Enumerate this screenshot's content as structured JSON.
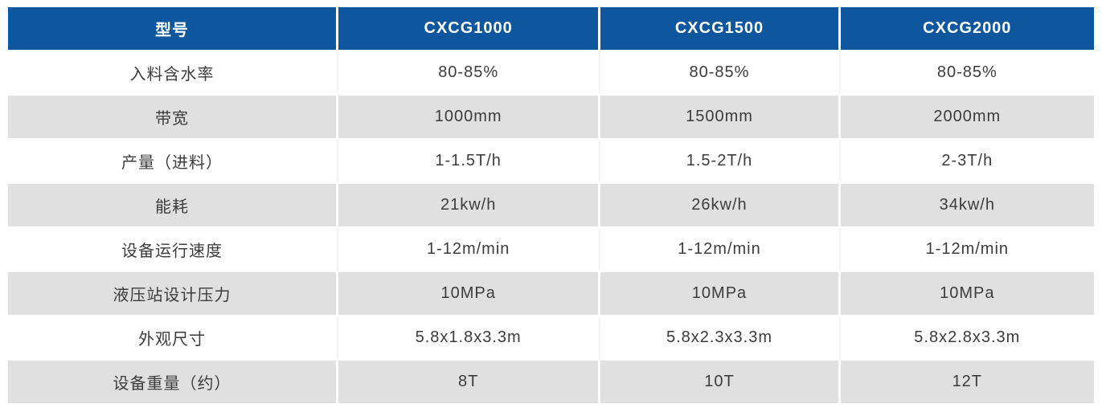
{
  "table": {
    "header": {
      "model_label": "型号",
      "models": [
        "CXCG1000",
        "CXCG1500",
        "CXCG2000"
      ]
    },
    "rows": [
      {
        "label": "入料含水率",
        "values": [
          "80-85%",
          "80-85%",
          "80-85%"
        ]
      },
      {
        "label": "带宽",
        "values": [
          "1000mm",
          "1500mm",
          "2000mm"
        ]
      },
      {
        "label": "产量（进料）",
        "values": [
          "1-1.5T/h",
          "1.5-2T/h",
          "2-3T/h"
        ]
      },
      {
        "label": "能耗",
        "values": [
          "21kw/h",
          "26kw/h",
          "34kw/h"
        ]
      },
      {
        "label": "设备运行速度",
        "values": [
          "1-12m/min",
          "1-12m/min",
          "1-12m/min"
        ]
      },
      {
        "label": "液压站设计压力",
        "values": [
          "10MPa",
          "10MPa",
          "10MPa"
        ]
      },
      {
        "label": "外观尺寸",
        "values": [
          "5.8x1.8x3.3m",
          "5.8x2.3x3.3m",
          "5.8x2.8x3.3m"
        ]
      },
      {
        "label": "设备重量（约）",
        "values": [
          "8T",
          "10T",
          "12T"
        ]
      }
    ],
    "colors": {
      "header_bg": "#0e579e",
      "header_text": "#ffffff",
      "alt_row_bg": "#e0e0e0",
      "body_text": "#3c3c3c",
      "gap": "#ffffff"
    }
  }
}
